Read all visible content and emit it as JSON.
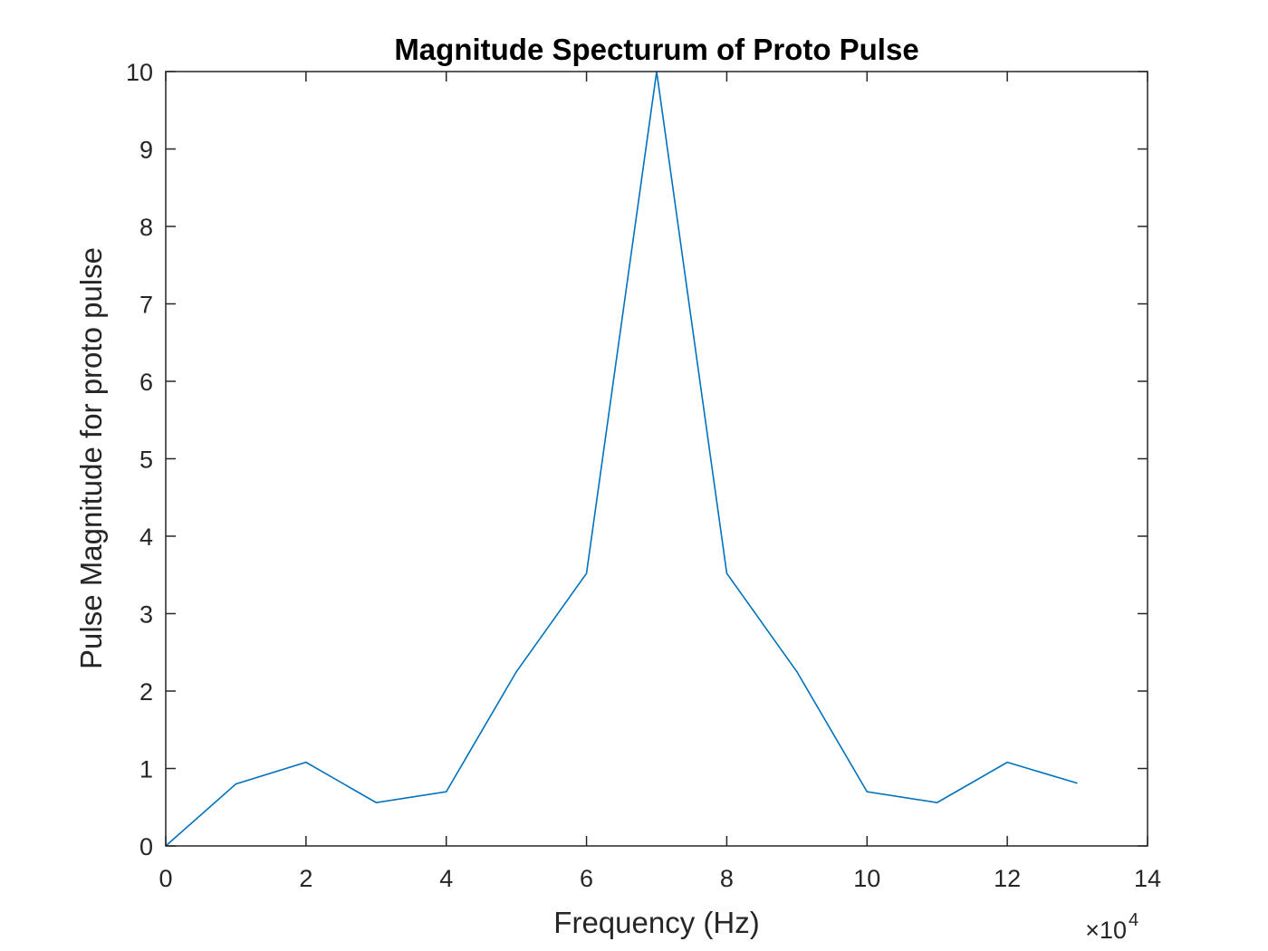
{
  "chart_data": {
    "type": "line",
    "title": "Magnitude Specturum of Proto Pulse",
    "xlabel": "Frequency (Hz)",
    "ylabel": "Pulse Magnitude for proto pulse",
    "x_exponent_base": "×10",
    "x_exponent_power": "4",
    "xlim": [
      0,
      14
    ],
    "ylim": [
      0,
      10
    ],
    "x_ticks": [
      0,
      2,
      4,
      6,
      8,
      10,
      12,
      14
    ],
    "y_ticks": [
      0,
      1,
      2,
      3,
      4,
      5,
      6,
      7,
      8,
      9,
      10
    ],
    "x_tick_labels": [
      "0",
      "2",
      "4",
      "6",
      "8",
      "10",
      "12",
      "14"
    ],
    "y_tick_labels": [
      "0",
      "1",
      "2",
      "3",
      "4",
      "5",
      "6",
      "7",
      "8",
      "9",
      "10"
    ],
    "grid": false,
    "series": [
      {
        "color": "#0072BD",
        "x": [
          0,
          1,
          2,
          3,
          4,
          5,
          6,
          7,
          8,
          9,
          10,
          11,
          12,
          13
        ],
        "y": [
          0,
          0.8,
          1.08,
          0.56,
          0.7,
          2.25,
          3.52,
          10,
          3.52,
          2.25,
          0.7,
          0.56,
          1.08,
          0.81
        ]
      }
    ]
  }
}
